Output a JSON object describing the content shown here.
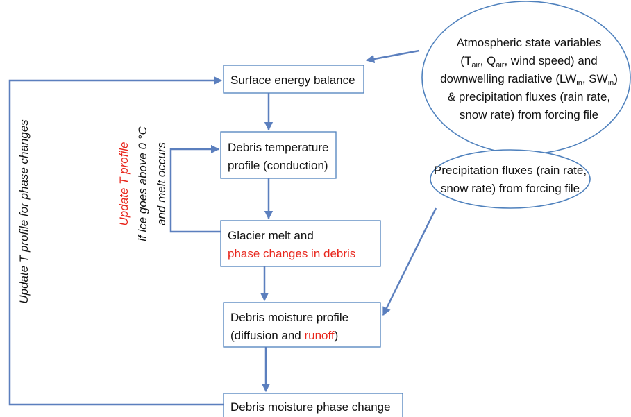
{
  "nodes": [
    {
      "lines": [
        [
          {
            "text": "Surface energy balance"
          }
        ]
      ]
    },
    {
      "lines": [
        [
          {
            "text": "Debris temperature"
          }
        ],
        [
          {
            "text": "profile (conduction)"
          }
        ]
      ]
    },
    {
      "lines": [
        [
          {
            "text": "Glacier melt and"
          }
        ],
        [
          {
            "text": "phase changes in debris",
            "color": "#e8261c"
          }
        ]
      ]
    },
    {
      "lines": [
        [
          {
            "text": "Debris moisture profile"
          }
        ],
        [
          {
            "text": "(diffusion and "
          },
          {
            "text": "runoff",
            "color": "#e8261c"
          },
          {
            "text": ")"
          }
        ]
      ]
    },
    {
      "lines": [
        [
          {
            "text": "Debris moisture phase change"
          }
        ]
      ]
    }
  ],
  "forcings": [
    {
      "lines": [
        [
          {
            "text": "Atmospheric state variables"
          }
        ],
        [
          {
            "text": "(T"
          },
          {
            "text": "air",
            "sub": true
          },
          {
            "text": ", Q"
          },
          {
            "text": "air",
            "sub": true
          },
          {
            "text": ", wind speed) and"
          }
        ],
        [
          {
            "text": "downwelling radiative (LW"
          },
          {
            "text": "in",
            "sub": true
          },
          {
            "text": ", SW"
          },
          {
            "text": "in",
            "sub": true
          },
          {
            "text": ")"
          }
        ],
        [
          {
            "text": "& precipitation fluxes (rain rate,"
          }
        ],
        [
          {
            "text": "snow rate) from forcing file"
          }
        ]
      ]
    },
    {
      "lines": [
        [
          {
            "text": "Precipitation fluxes (rain rate,"
          }
        ],
        [
          {
            "text": "snow rate) from forcing file"
          }
        ]
      ]
    }
  ],
  "outer_loop_label": "Update T profile for phase changes",
  "inner_loop_label": {
    "lines": [
      [
        {
          "text": "Update T profile",
          "color": "#e8261c"
        }
      ],
      [
        {
          "text": "if ice goes above 0 °C"
        }
      ],
      [
        {
          "text": "and melt occurs"
        }
      ]
    ]
  }
}
